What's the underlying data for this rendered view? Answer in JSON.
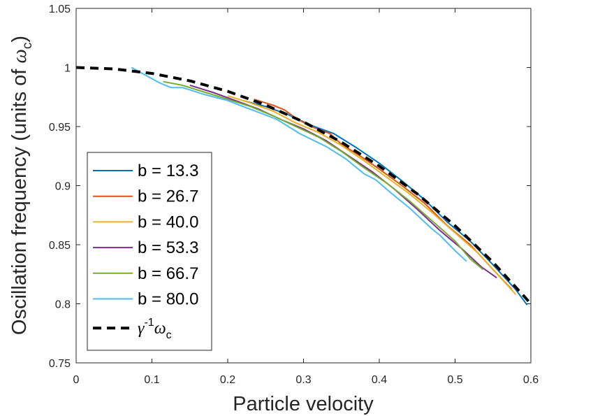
{
  "chart_data": {
    "type": "line",
    "title": "",
    "xlabel": "Particle velocity",
    "ylabel": "Oscillation frequency (units of ωc)",
    "ylabel_parts": {
      "main": "Oscillation frequency (units of ",
      "symbol": "ω",
      "sub": "c",
      "close": ")"
    },
    "xlim": [
      0,
      0.6
    ],
    "ylim": [
      0.75,
      1.05
    ],
    "xticks": [
      0,
      0.1,
      0.2,
      0.3,
      0.4,
      0.5,
      0.6
    ],
    "xtick_labels": [
      "0",
      "0.1",
      "0.2",
      "0.3",
      "0.4",
      "0.5",
      "0.6"
    ],
    "yticks": [
      0.75,
      0.8,
      0.85,
      0.9,
      0.95,
      1.0,
      1.05
    ],
    "ytick_labels": [
      "0.75",
      "0.8",
      "0.85",
      "0.9",
      "0.95",
      "1",
      "1.05"
    ],
    "grid": false,
    "legend_position": "bottom-left",
    "series": [
      {
        "name": "b = 13.3",
        "color": "#0072BD",
        "dash": false,
        "x": [
          0.22,
          0.25,
          0.28,
          0.31,
          0.34,
          0.37,
          0.4,
          0.43,
          0.46,
          0.49,
          0.52,
          0.55,
          0.58,
          0.595
        ],
        "y": [
          0.972,
          0.967,
          0.96,
          0.951,
          0.944,
          0.932,
          0.919,
          0.904,
          0.888,
          0.869,
          0.853,
          0.833,
          0.812,
          0.799
        ]
      },
      {
        "name": "b = 26.7",
        "color": "#D95319",
        "dash": false,
        "x": [
          0.235,
          0.26,
          0.275,
          0.29,
          0.31,
          0.335,
          0.35,
          0.375,
          0.4,
          0.43,
          0.46,
          0.49,
          0.52,
          0.55,
          0.575
        ],
        "y": [
          0.973,
          0.968,
          0.964,
          0.957,
          0.95,
          0.944,
          0.935,
          0.925,
          0.914,
          0.9,
          0.885,
          0.866,
          0.85,
          0.829,
          0.812
        ]
      },
      {
        "name": "b = 40.0",
        "color": "#EDB120",
        "dash": false,
        "x": [
          0.2,
          0.23,
          0.26,
          0.29,
          0.32,
          0.35,
          0.38,
          0.41,
          0.44,
          0.47,
          0.5,
          0.53,
          0.56,
          0.58
        ],
        "y": [
          0.976,
          0.97,
          0.963,
          0.953,
          0.945,
          0.934,
          0.921,
          0.907,
          0.893,
          0.877,
          0.86,
          0.843,
          0.822,
          0.808
        ]
      },
      {
        "name": "b = 53.3",
        "color": "#7E2F8E",
        "dash": false,
        "x": [
          0.15,
          0.18,
          0.21,
          0.24,
          0.27,
          0.3,
          0.33,
          0.36,
          0.39,
          0.42,
          0.45,
          0.48,
          0.51,
          0.535,
          0.555
        ],
        "y": [
          0.985,
          0.979,
          0.972,
          0.965,
          0.956,
          0.948,
          0.938,
          0.925,
          0.912,
          0.897,
          0.88,
          0.862,
          0.846,
          0.831,
          0.822
        ]
      },
      {
        "name": "b = 66.7",
        "color": "#77AC30",
        "dash": false,
        "x": [
          0.115,
          0.14,
          0.17,
          0.2,
          0.23,
          0.26,
          0.29,
          0.32,
          0.35,
          0.38,
          0.41,
          0.44,
          0.47,
          0.5,
          0.52,
          0.537
        ],
        "y": [
          0.988,
          0.985,
          0.979,
          0.973,
          0.967,
          0.959,
          0.95,
          0.941,
          0.929,
          0.915,
          0.902,
          0.887,
          0.87,
          0.853,
          0.838,
          0.829
        ]
      },
      {
        "name": "b = 80.0",
        "color": "#4DBEEE",
        "dash": false,
        "x": [
          0.073,
          0.09,
          0.11,
          0.125,
          0.14,
          0.15,
          0.17,
          0.2,
          0.22,
          0.245,
          0.265,
          0.295,
          0.33,
          0.355,
          0.38,
          0.395,
          0.415,
          0.44,
          0.47,
          0.48,
          0.5,
          0.515
        ],
        "y": [
          1.0,
          0.994,
          0.987,
          0.983,
          0.983,
          0.981,
          0.977,
          0.972,
          0.967,
          0.961,
          0.956,
          0.944,
          0.933,
          0.923,
          0.91,
          0.905,
          0.894,
          0.881,
          0.863,
          0.858,
          0.845,
          0.836
        ]
      },
      {
        "name": "γ-1ωc",
        "color": "#000000",
        "dash": true,
        "x": [
          0,
          0.05,
          0.1,
          0.15,
          0.2,
          0.25,
          0.3,
          0.35,
          0.4,
          0.45,
          0.5,
          0.55,
          0.6
        ],
        "y": [
          1.0,
          0.99875,
          0.99499,
          0.98869,
          0.9798,
          0.96825,
          0.95394,
          0.93675,
          0.91652,
          0.89303,
          0.86603,
          0.83516,
          0.8
        ]
      }
    ],
    "legend_entries": [
      {
        "label": "b = 13.3"
      },
      {
        "label": "b = 26.7"
      },
      {
        "label": "b = 40.0"
      },
      {
        "label": "b = 53.3"
      },
      {
        "label": "b = 66.7"
      },
      {
        "label": "b = 80.0"
      },
      {
        "label_parts": {
          "base": "γ",
          "sup": "-1",
          "main": "ω",
          "sub": "c"
        }
      }
    ]
  }
}
